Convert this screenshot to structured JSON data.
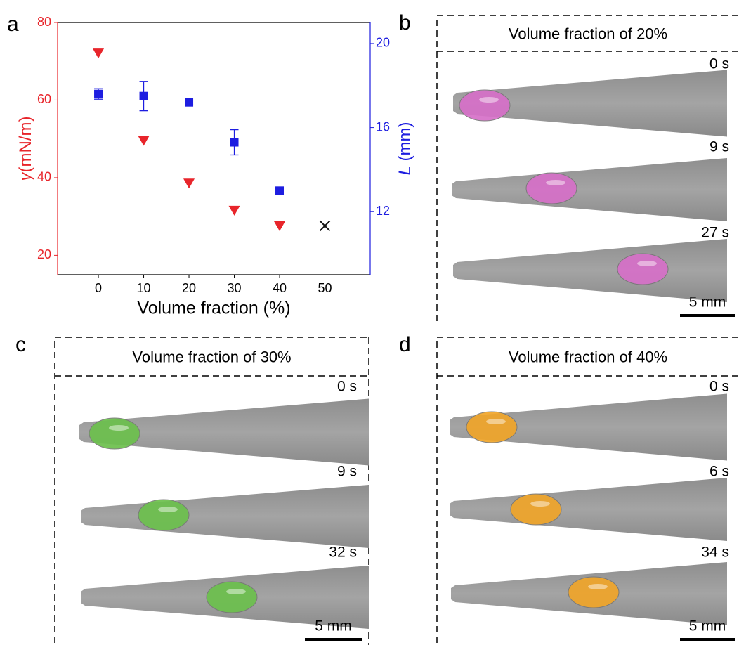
{
  "chart_data": {
    "type": "scatter",
    "panel_label": "a",
    "xlabel": "Volume fraction (%)",
    "ylabel_symbol": "γ",
    "ylabel_unit": "(mN/m)",
    "y2label_symbol": "L",
    "y2label_unit": " (mm)",
    "xlim": [
      -9,
      60
    ],
    "xticks": [
      0,
      10,
      20,
      30,
      40,
      50
    ],
    "ylim": [
      15,
      80
    ],
    "yticks": [
      20,
      40,
      60,
      80
    ],
    "y2lim": [
      9,
      21
    ],
    "y2ticks": [
      12,
      16,
      20
    ],
    "series": [
      {
        "color": "#e8252b",
        "marker": "triangle-down",
        "x": [
          0,
          10,
          20,
          30,
          40
        ],
        "values": [
          72,
          49.5,
          38.5,
          31.5,
          27.5
        ]
      },
      {
        "color": "#1d1de0",
        "marker": "square",
        "axis": "y2",
        "x": [
          0,
          10,
          20,
          30,
          40
        ],
        "values": [
          17.6,
          17.5,
          17.2,
          15.3,
          13.0
        ],
        "errors": [
          0.25,
          0.7,
          0.1,
          0.6,
          0.1
        ]
      },
      {
        "color": "#111111",
        "marker": "cross",
        "x": [
          50
        ],
        "values": [
          27.6
        ]
      }
    ]
  },
  "panels": [
    {
      "label": "b",
      "title": "Volume fraction of 20%",
      "times": [
        "0 s",
        "9 s",
        "27 s"
      ],
      "scale_bar": "5 mm"
    },
    {
      "label": "c",
      "title": "Volume fraction of 30%",
      "times": [
        "0 s",
        "9 s",
        "32 s"
      ],
      "scale_bar": "5 mm"
    },
    {
      "label": "d",
      "title": "Volume fraction of 40%",
      "times": [
        "0 s",
        "6 s",
        "34 s"
      ],
      "scale_bar": "5 mm"
    }
  ]
}
